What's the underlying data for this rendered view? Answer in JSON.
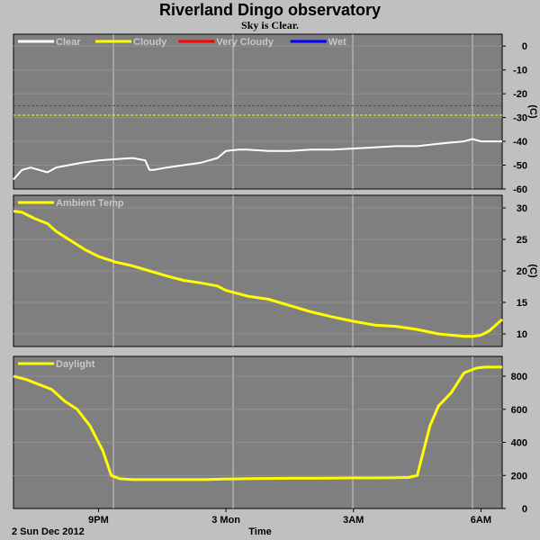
{
  "title": "Riverland Dingo observatory",
  "subtitle": "Sky is Clear.",
  "colors": {
    "background": "#c0c0c0",
    "panel": "#7f7f7f",
    "grid": "#c8c8c8",
    "clear": "#ffffff",
    "cloudy": "#ffff00",
    "very_cloudy": "#ff0000",
    "wet": "#0000ff"
  },
  "chart_data": [
    {
      "type": "line",
      "name": "sky",
      "xlim": [
        0,
        11.5
      ],
      "ylim": [
        -60,
        5
      ],
      "yticks": [
        0,
        -10,
        -20,
        -30,
        -40,
        -50,
        -60
      ],
      "unit": "(C)",
      "legend": [
        {
          "label": "Clear",
          "color": "#ffffff"
        },
        {
          "label": "Cloudy",
          "color": "#ffff00"
        },
        {
          "label": "Very Cloudy",
          "color": "#ff0000"
        },
        {
          "label": "Wet",
          "color": "#0000ff"
        }
      ],
      "thresholds": [
        {
          "label": "Very Cloudy",
          "value": -25,
          "color": "#ff0000"
        },
        {
          "label": "Cloudy",
          "value": -29,
          "color": "#ffff00"
        }
      ],
      "series": [
        {
          "name": "Clear",
          "color": "#ffffff",
          "x": [
            0,
            0.2,
            0.4,
            0.6,
            0.8,
            1.0,
            1.3,
            1.6,
            2.0,
            2.4,
            2.8,
            3.1,
            3.2,
            3.3,
            3.6,
            4.0,
            4.4,
            4.8,
            5.0,
            5.3,
            5.5,
            6.0,
            6.5,
            7.0,
            7.5,
            8.0,
            8.5,
            9.0,
            9.5,
            10.0,
            10.3,
            10.6,
            10.8,
            11.0,
            11.2,
            11.5
          ],
          "y": [
            -56,
            -52,
            -51,
            -52,
            -53,
            -51,
            -50,
            -49,
            -48,
            -47.5,
            -47,
            -48,
            -52,
            -52,
            -51,
            -50,
            -49,
            -47,
            -44,
            -43.5,
            -43.5,
            -44,
            -44,
            -43.5,
            -43.5,
            -43,
            -42.5,
            -42,
            -42,
            -41,
            -40.5,
            -40,
            -39,
            -40,
            -40,
            -40
          ]
        }
      ]
    },
    {
      "type": "line",
      "name": "ambient",
      "xlim": [
        0,
        11.5
      ],
      "ylim": [
        8,
        32
      ],
      "yticks": [
        30,
        25,
        20,
        15,
        10
      ],
      "unit": "(C)",
      "legend": [
        {
          "label": "Ambient Temp",
          "color": "#ffff00"
        }
      ],
      "series": [
        {
          "name": "Ambient Temp",
          "color": "#ffff00",
          "x": [
            0,
            0.2,
            0.5,
            0.8,
            1.0,
            1.3,
            1.7,
            2.0,
            2.4,
            2.8,
            3.2,
            3.6,
            4.0,
            4.4,
            4.8,
            5.0,
            5.5,
            6.0,
            6.5,
            7.0,
            7.5,
            8.0,
            8.5,
            9.0,
            9.5,
            10.0,
            10.3,
            10.6,
            10.8,
            11.0,
            11.2,
            11.5
          ],
          "y": [
            29.5,
            29.3,
            28.3,
            27.5,
            26.3,
            25.0,
            23.3,
            22.3,
            21.4,
            20.8,
            20.0,
            19.2,
            18.5,
            18.1,
            17.6,
            16.9,
            16.0,
            15.5,
            14.5,
            13.5,
            12.7,
            12.0,
            11.4,
            11.2,
            10.7,
            10.0,
            9.8,
            9.6,
            9.6,
            9.8,
            10.5,
            12.3
          ]
        }
      ]
    },
    {
      "type": "line",
      "name": "daylight",
      "xlim": [
        0,
        11.5
      ],
      "ylim": [
        0,
        920
      ],
      "yticks": [
        800,
        600,
        400,
        200,
        0
      ],
      "legend": [
        {
          "label": "Daylight",
          "color": "#ffff00"
        }
      ],
      "series": [
        {
          "name": "Daylight",
          "color": "#ffff00",
          "x": [
            0,
            0.3,
            0.6,
            0.9,
            1.2,
            1.5,
            1.8,
            2.1,
            2.3,
            2.5,
            2.8,
            3.0,
            3.5,
            4.0,
            4.5,
            5.0,
            5.5,
            6.0,
            6.5,
            7.0,
            7.5,
            8.0,
            8.5,
            9.0,
            9.3,
            9.5,
            9.6,
            9.8,
            10.0,
            10.3,
            10.6,
            10.9,
            11.1,
            11.3,
            11.5
          ],
          "y": [
            800,
            780,
            750,
            720,
            650,
            600,
            500,
            350,
            200,
            180,
            175,
            175,
            175,
            175,
            175,
            178,
            180,
            182,
            183,
            183,
            184,
            185,
            185,
            186,
            188,
            200,
            300,
            500,
            620,
            700,
            820,
            850,
            855,
            855,
            855
          ]
        }
      ],
      "xticks": [
        {
          "x": 2.0,
          "label": "9PM"
        },
        {
          "x": 5.0,
          "label": "3 Mon"
        },
        {
          "x": 8.0,
          "label": "3AM"
        },
        {
          "x": 11.0,
          "label": "6AM"
        }
      ]
    }
  ],
  "footer": {
    "date_label": "2 Sun Dec 2012",
    "xlabel": "Time"
  }
}
